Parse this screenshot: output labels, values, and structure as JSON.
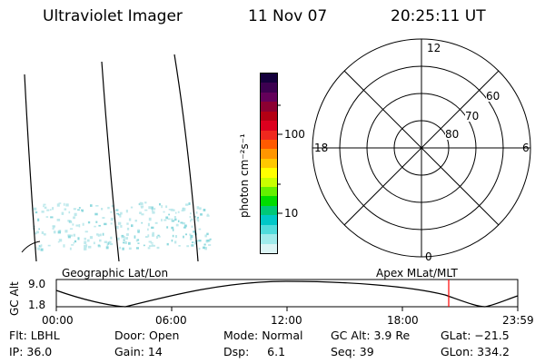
{
  "header": {
    "instrument": "Ultraviolet Imager",
    "date": "11 Nov 07",
    "time": "20:25:11 UT"
  },
  "colorbar": {
    "unit_label": "photon cm⁻²s⁻¹",
    "ticks": [
      "100",
      "10"
    ],
    "colors": [
      "#14003c",
      "#3c0050",
      "#64005a",
      "#8c0032",
      "#b40014",
      "#dc001e",
      "#f0281e",
      "#ff5a00",
      "#ff9600",
      "#ffc800",
      "#ffff00",
      "#c8ff00",
      "#64f000",
      "#00dc00",
      "#00c878",
      "#00c8c8",
      "#50dcdc",
      "#a0ebeb",
      "#dcf5f5"
    ]
  },
  "polar_plot": {
    "mlt_labels": [
      "12",
      "18",
      "6",
      "0"
    ],
    "mlat_labels": [
      "60",
      "70",
      "80"
    ]
  },
  "projection_labels": {
    "left": "Geographic Lat/Lon",
    "right": "Apex MLat/MLT"
  },
  "timeline": {
    "ylabel": "GC Alt",
    "y_ticks": [
      "9.0",
      "1.8"
    ],
    "x_ticks": [
      "00:00",
      "06:00",
      "12:00",
      "18:00",
      "23:59"
    ],
    "current_time_marker_color": "#ff0000"
  },
  "status": {
    "flt": "Flt: LBHL",
    "ip": "IP: 36.0",
    "door": "Door: Open",
    "gain": "Gain: 14",
    "mode": "Mode: Normal",
    "dsp": "Dsp:     6.1",
    "gc_alt": "GC Alt: 3.9 Re",
    "seq": "Seq: 39",
    "glat": "GLat: −21.5",
    "glon": "GLon: 334.2"
  }
}
